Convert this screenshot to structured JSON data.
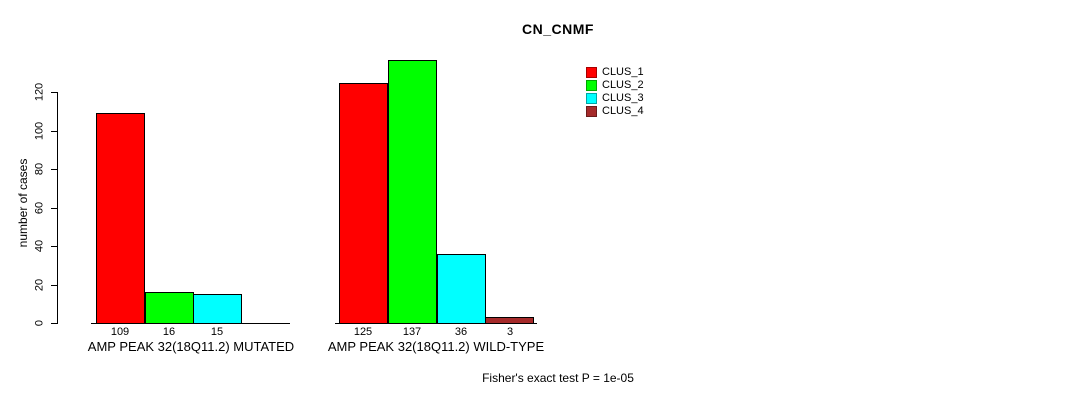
{
  "figure": {
    "title": "CN_CNMF",
    "ylabel": "number of cases",
    "footer": "Fisher's exact test P = 1e-05"
  },
  "chart_data": {
    "type": "bar",
    "title": "CN_CNMF",
    "xlabel": "",
    "ylabel": "number of cases",
    "ylim": [
      0,
      140
    ],
    "yticks": [
      0,
      20,
      40,
      60,
      80,
      100,
      120
    ],
    "grid": false,
    "legend_position": "top-right",
    "categories": [
      "AMP PEAK 32(18Q11.2) MUTATED",
      "AMP PEAK 32(18Q11.2) WILD-TYPE"
    ],
    "series": [
      {
        "name": "CLUS_1",
        "color": "#ff0000",
        "values": [
          109,
          125
        ]
      },
      {
        "name": "CLUS_2",
        "color": "#00ff00",
        "values": [
          16,
          137
        ]
      },
      {
        "name": "CLUS_3",
        "color": "#00ffff",
        "values": [
          15,
          36
        ]
      },
      {
        "name": "CLUS_4",
        "color": "#a52a2a",
        "values": [
          0,
          3
        ]
      }
    ],
    "bar_value_labels": {
      "shown": true,
      "group_1": [
        "109",
        "16",
        "15",
        ""
      ],
      "group_2": [
        "125",
        "137",
        "36",
        "3"
      ]
    },
    "annotation": "Fisher's exact test P = 1e-05"
  }
}
